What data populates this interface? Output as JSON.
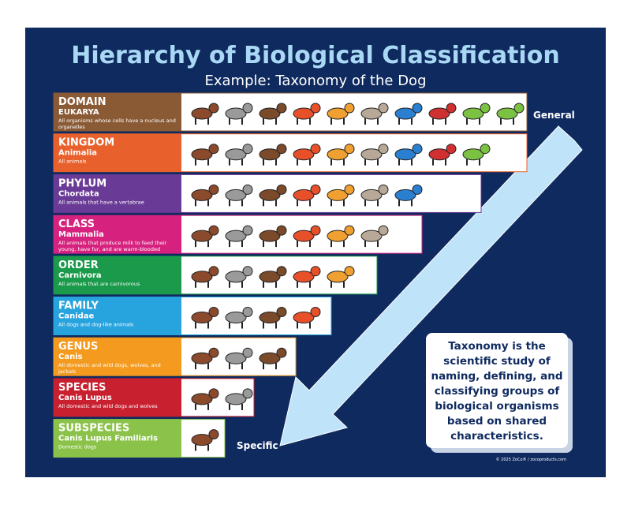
{
  "header": {
    "title": "Hierarchy of Biological Classification",
    "subtitle": "Example: Taxonomy of the Dog"
  },
  "levels": [
    {
      "rank": "DOMAIN",
      "name": "EUKARYA",
      "description": "All organisms whose cells have a nucleus and organelles",
      "color": "#8a5a35"
    },
    {
      "rank": "KINGDOM",
      "name": "Animalia",
      "description": "All animals",
      "color": "#e8612c"
    },
    {
      "rank": "PHYLUM",
      "name": "Chordata",
      "description": "All animals that have a vertabrae",
      "color": "#6a3b96"
    },
    {
      "rank": "CLASS",
      "name": "Mammalia",
      "description": "All animals that produce milk to feed their young, have fur, and are warm-blooded",
      "color": "#d6227e"
    },
    {
      "rank": "ORDER",
      "name": "Carnivora",
      "description": "All animals that are carnivorous",
      "color": "#1a9a4a"
    },
    {
      "rank": "FAMILY",
      "name": "Canidae",
      "description": "All dogs and dog-like animals",
      "color": "#27a3de"
    },
    {
      "rank": "GENUS",
      "name": "Canis",
      "description": "All domestic and wild dogs, wolves, and jackals",
      "color": "#f39a1f"
    },
    {
      "rank": "SPECIES",
      "name": "Canis Lupus",
      "description": "All domestic and wild dogs and wolves",
      "color": "#c8202f"
    },
    {
      "rank": "SUBSPECIES",
      "name": "Canis Lupus Familiaris",
      "description": "Domestic dogs",
      "color": "#8bc34a"
    }
  ],
  "arrow": {
    "start_label": "General",
    "end_label": "Specific"
  },
  "info_box": {
    "lines": [
      "Taxonomy is the",
      "scientific study of",
      "naming, defining, and",
      "classifying groups of",
      "biological organisms",
      "based on shared",
      "characteristics."
    ]
  },
  "footer": {
    "copyright": "© 2025 ZoCo® / zocoproducts.com"
  }
}
